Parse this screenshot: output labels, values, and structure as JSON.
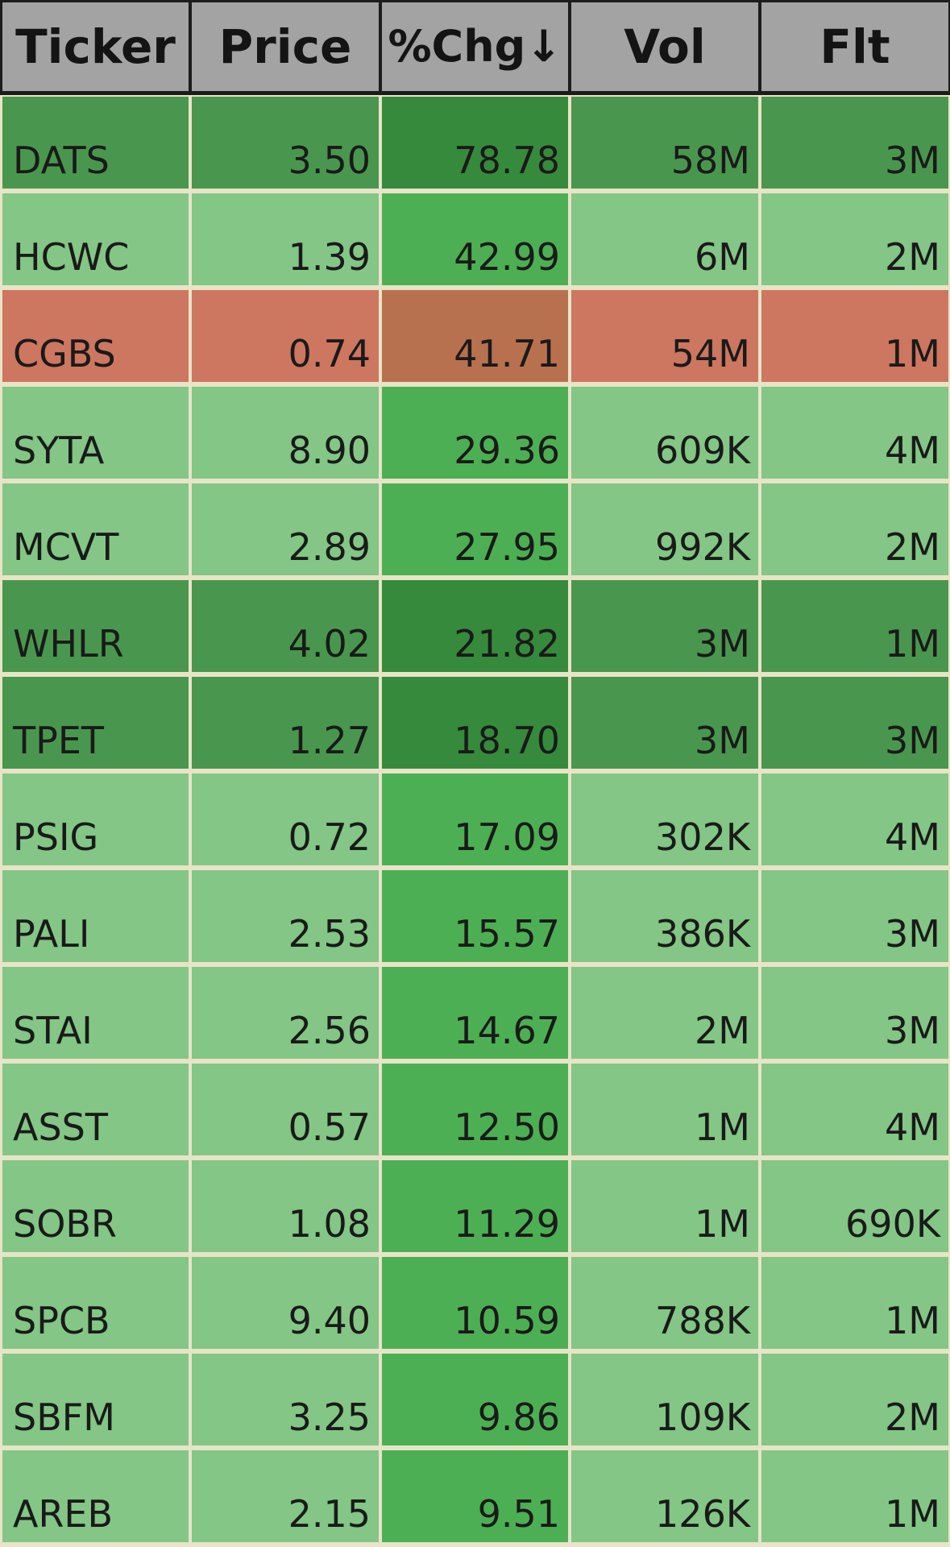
{
  "colors": {
    "header_bg": "#a3a3a3",
    "grid_line": "#e8e4c8",
    "light_green": "#83c685",
    "light_green_chg": "#4daf53",
    "dark_green": "#49974e",
    "dark_green_chg": "#368a3c",
    "red": "#cd7660",
    "red_chg": "#b8714e"
  },
  "header": {
    "columns": [
      {
        "key": "ticker",
        "label": "Ticker"
      },
      {
        "key": "price",
        "label": "Price"
      },
      {
        "key": "chg",
        "label": "%Chg↓"
      },
      {
        "key": "vol",
        "label": "Vol"
      },
      {
        "key": "flt",
        "label": "Flt"
      }
    ],
    "sorted_column": "chg",
    "sort_direction": "descending"
  },
  "rows": [
    {
      "ticker": "DATS",
      "price": "3.50",
      "chg": "78.78",
      "vol": "58M",
      "flt": "3M",
      "tone": "dark"
    },
    {
      "ticker": "HCWC",
      "price": "1.39",
      "chg": "42.99",
      "vol": "6M",
      "flt": "2M",
      "tone": "light"
    },
    {
      "ticker": "CGBS",
      "price": "0.74",
      "chg": "41.71",
      "vol": "54M",
      "flt": "1M",
      "tone": "red"
    },
    {
      "ticker": "SYTA",
      "price": "8.90",
      "chg": "29.36",
      "vol": "609K",
      "flt": "4M",
      "tone": "light"
    },
    {
      "ticker": "MCVT",
      "price": "2.89",
      "chg": "27.95",
      "vol": "992K",
      "flt": "2M",
      "tone": "light"
    },
    {
      "ticker": "WHLR",
      "price": "4.02",
      "chg": "21.82",
      "vol": "3M",
      "flt": "1M",
      "tone": "dark"
    },
    {
      "ticker": "TPET",
      "price": "1.27",
      "chg": "18.70",
      "vol": "3M",
      "flt": "3M",
      "tone": "dark"
    },
    {
      "ticker": "PSIG",
      "price": "0.72",
      "chg": "17.09",
      "vol": "302K",
      "flt": "4M",
      "tone": "light"
    },
    {
      "ticker": "PALI",
      "price": "2.53",
      "chg": "15.57",
      "vol": "386K",
      "flt": "3M",
      "tone": "light"
    },
    {
      "ticker": "STAI",
      "price": "2.56",
      "chg": "14.67",
      "vol": "2M",
      "flt": "3M",
      "tone": "light"
    },
    {
      "ticker": "ASST",
      "price": "0.57",
      "chg": "12.50",
      "vol": "1M",
      "flt": "4M",
      "tone": "light"
    },
    {
      "ticker": "SOBR",
      "price": "1.08",
      "chg": "11.29",
      "vol": "1M",
      "flt": "690K",
      "tone": "light"
    },
    {
      "ticker": "SPCB",
      "price": "9.40",
      "chg": "10.59",
      "vol": "788K",
      "flt": "1M",
      "tone": "light"
    },
    {
      "ticker": "SBFM",
      "price": "3.25",
      "chg": "9.86",
      "vol": "109K",
      "flt": "2M",
      "tone": "light"
    },
    {
      "ticker": "AREB",
      "price": "2.15",
      "chg": "9.51",
      "vol": "126K",
      "flt": "1M",
      "tone": "light"
    }
  ]
}
